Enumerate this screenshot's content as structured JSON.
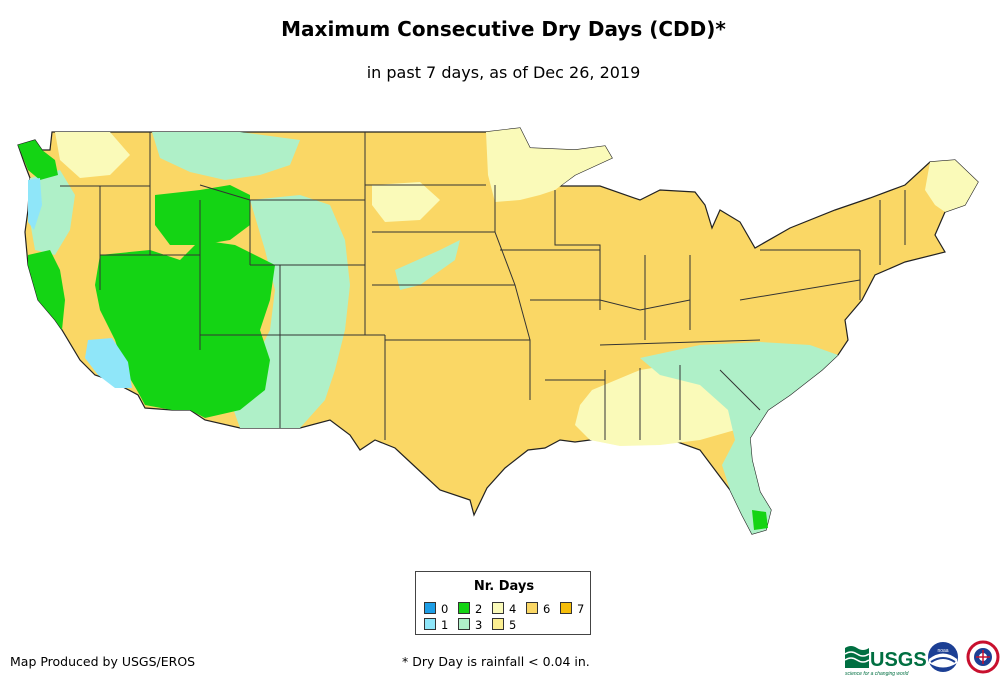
{
  "title": "Maximum Consecutive Dry Days (CDD)*",
  "subtitle": "in past 7 days, as of Dec 26, 2019",
  "legend": {
    "title": "Nr. Days",
    "items": [
      {
        "label": "0",
        "color": "#1e9ee6"
      },
      {
        "label": "1",
        "color": "#8fe6f9"
      },
      {
        "label": "2",
        "color": "#14d414"
      },
      {
        "label": "3",
        "color": "#aff0c8"
      },
      {
        "label": "4",
        "color": "#fafab9"
      },
      {
        "label": "5",
        "color": "#fcef91"
      },
      {
        "label": "6",
        "color": "#fad765"
      },
      {
        "label": "7",
        "color": "#f5bd0a"
      }
    ]
  },
  "footer": {
    "producer": "Map Produced by USGS/EROS",
    "note": "* Dry Day is rainfall < 0.04 in."
  },
  "logos": {
    "usgs_text": "USGS",
    "usgs_tagline": "science for a changing world",
    "noaa_text": "noaa"
  }
}
